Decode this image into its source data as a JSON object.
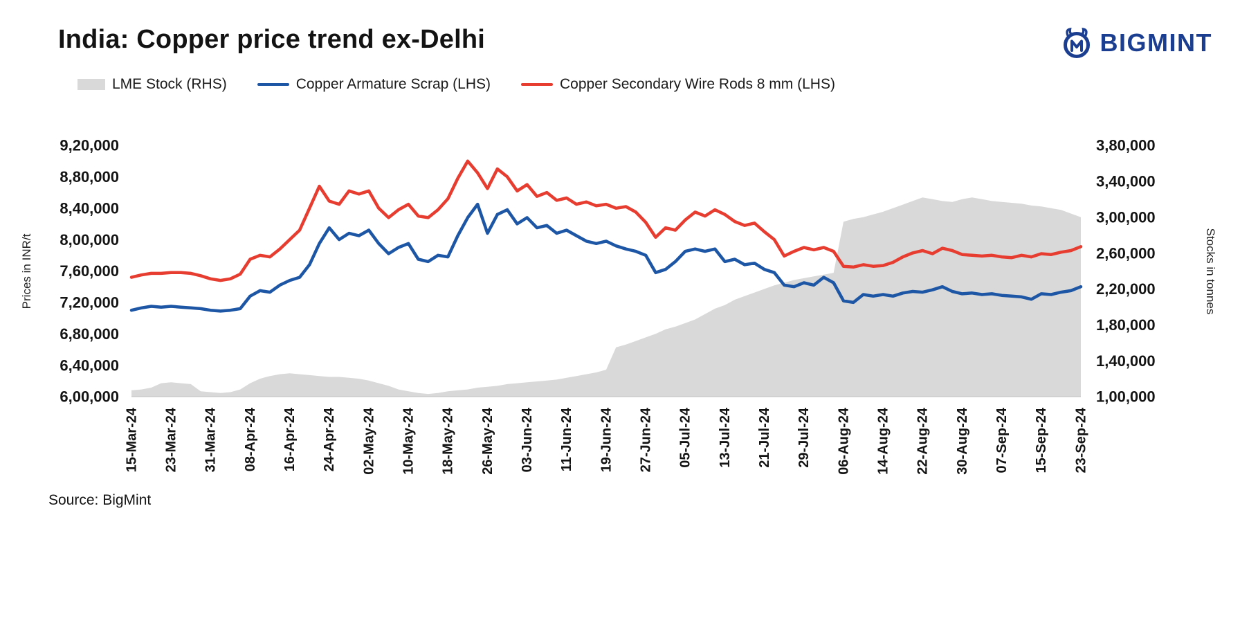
{
  "header": {
    "title": "India: Copper price trend ex-Delhi",
    "brand": "BIGMINT"
  },
  "footer": {
    "source": "Source: BigMint"
  },
  "colors": {
    "area_gray": "#d9d9d9",
    "line_blue": "#1d56a5",
    "line_red": "#e73c30",
    "brand_navy": "#1b3e91",
    "text": "#141414"
  },
  "chart_data": {
    "type": "combo",
    "title": "India: Copper price trend ex-Delhi",
    "grid": false,
    "legend_position": "top",
    "x_tick_labels": [
      "15-Mar-24",
      "23-Mar-24",
      "31-Mar-24",
      "08-Apr-24",
      "16-Apr-24",
      "24-Apr-24",
      "02-May-24",
      "10-May-24",
      "18-May-24",
      "26-May-24",
      "03-Jun-24",
      "11-Jun-24",
      "19-Jun-24",
      "27-Jun-24",
      "05-Jul-24",
      "13-Jul-24",
      "21-Jul-24",
      "29-Jul-24",
      "06-Aug-24",
      "14-Aug-24",
      "22-Aug-24",
      "30-Aug-24",
      "07-Sep-24",
      "15-Sep-24",
      "23-Sep-24"
    ],
    "points_per_tick": 4,
    "left_axis": {
      "label": "Prices in INR/t",
      "min": 600000,
      "max": 920000,
      "tick_step": 40000,
      "tick_labels": [
        "6,00,000",
        "6,40,000",
        "6,80,000",
        "7,20,000",
        "7,60,000",
        "8,00,000",
        "8,40,000",
        "8,80,000",
        "9,20,000"
      ]
    },
    "right_axis": {
      "label": "Stocks in tonnes",
      "min": 100000,
      "max": 380000,
      "tick_step": 40000,
      "tick_labels": [
        "1,00,000",
        "1,40,000",
        "1,80,000",
        "2,20,000",
        "2,60,000",
        "3,00,000",
        "3,40,000",
        "3,80,000"
      ]
    },
    "series": [
      {
        "name": "LME Stock (RHS)",
        "type": "area",
        "axis": "right",
        "color": "#d9d9d9",
        "values": [
          107000,
          108000,
          110000,
          115000,
          116000,
          115000,
          114000,
          106000,
          105000,
          104000,
          105000,
          108000,
          115000,
          120000,
          123000,
          125000,
          126000,
          125000,
          124000,
          123000,
          122000,
          122000,
          121000,
          120000,
          118000,
          115000,
          112000,
          108000,
          106000,
          104000,
          103000,
          104000,
          106000,
          107000,
          108000,
          110000,
          111000,
          112000,
          114000,
          115000,
          116000,
          117000,
          118000,
          119000,
          121000,
          123000,
          125000,
          127000,
          130000,
          155000,
          158000,
          162000,
          166000,
          170000,
          175000,
          178000,
          182000,
          186000,
          192000,
          198000,
          202000,
          208000,
          212000,
          216000,
          220000,
          224000,
          227000,
          230000,
          232000,
          234000,
          236000,
          238000,
          295000,
          298000,
          300000,
          303000,
          306000,
          310000,
          314000,
          318000,
          322000,
          320000,
          318000,
          317000,
          320000,
          322000,
          320000,
          318000,
          317000,
          316000,
          315000,
          313000,
          312000,
          310000,
          308000,
          304000,
          300000
        ]
      },
      {
        "name": "Copper Armature Scrap (LHS)",
        "type": "line",
        "axis": "left",
        "color": "#1d56a5",
        "values": [
          710000,
          713000,
          715000,
          714000,
          715000,
          714000,
          713000,
          712000,
          710000,
          709000,
          710000,
          712000,
          728000,
          735000,
          733000,
          742000,
          748000,
          752000,
          768000,
          795000,
          815000,
          800000,
          808000,
          805000,
          812000,
          795000,
          782000,
          790000,
          795000,
          775000,
          772000,
          780000,
          778000,
          805000,
          828000,
          845000,
          808000,
          832000,
          838000,
          820000,
          828000,
          815000,
          818000,
          808000,
          812000,
          805000,
          798000,
          795000,
          798000,
          792000,
          788000,
          785000,
          780000,
          758000,
          762000,
          772000,
          785000,
          788000,
          785000,
          788000,
          772000,
          775000,
          768000,
          770000,
          762000,
          758000,
          742000,
          740000,
          745000,
          742000,
          752000,
          745000,
          722000,
          720000,
          730000,
          728000,
          730000,
          728000,
          732000,
          734000,
          733000,
          736000,
          740000,
          734000,
          731000,
          732000,
          730000,
          731000,
          729000,
          728000,
          727000,
          724000,
          731000,
          730000,
          733000,
          735000,
          740000
        ]
      },
      {
        "name": "Copper Secondary Wire Rods 8 mm (LHS)",
        "type": "line",
        "axis": "left",
        "color": "#e73c30",
        "values": [
          752000,
          755000,
          757000,
          757000,
          758000,
          758000,
          757000,
          754000,
          750000,
          748000,
          750000,
          756000,
          775000,
          780000,
          778000,
          788000,
          800000,
          812000,
          840000,
          868000,
          849000,
          845000,
          862000,
          858000,
          862000,
          840000,
          828000,
          838000,
          845000,
          830000,
          828000,
          838000,
          852000,
          878000,
          900000,
          885000,
          865000,
          890000,
          880000,
          862000,
          870000,
          855000,
          860000,
          850000,
          853000,
          845000,
          848000,
          843000,
          845000,
          840000,
          842000,
          835000,
          822000,
          803000,
          815000,
          812000,
          825000,
          835000,
          830000,
          838000,
          832000,
          823000,
          818000,
          821000,
          810000,
          800000,
          779000,
          785000,
          790000,
          787000,
          790000,
          785000,
          766000,
          765000,
          768000,
          766000,
          767000,
          771000,
          778000,
          783000,
          786000,
          782000,
          789000,
          786000,
          781000,
          780000,
          779000,
          780000,
          778000,
          777000,
          780000,
          778000,
          782000,
          781000,
          784000,
          786000,
          791000
        ]
      }
    ]
  }
}
